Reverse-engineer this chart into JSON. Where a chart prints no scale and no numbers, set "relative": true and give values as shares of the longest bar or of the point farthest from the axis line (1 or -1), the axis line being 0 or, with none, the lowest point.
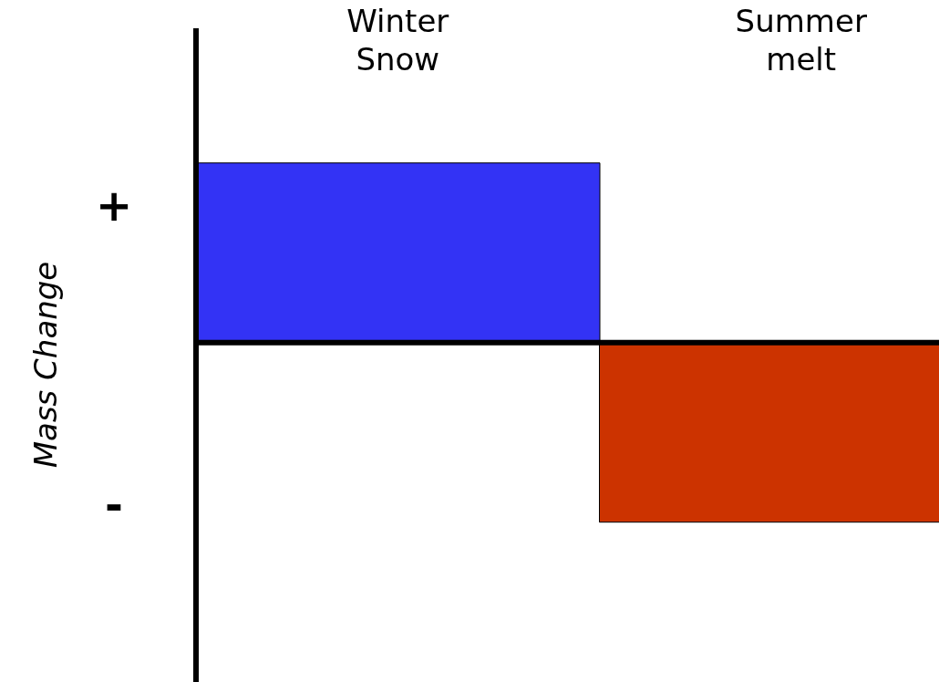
{
  "chart_data": {
    "type": "bar",
    "relative": true,
    "ylabel": "Mass Change",
    "categories": [
      "Winter Snow",
      "Summer melt"
    ],
    "values": [
      1,
      -1
    ],
    "colors": [
      "#3333f5",
      "#cc3300"
    ],
    "annotations": [
      "+",
      "-"
    ],
    "grid": false,
    "legend": false
  }
}
